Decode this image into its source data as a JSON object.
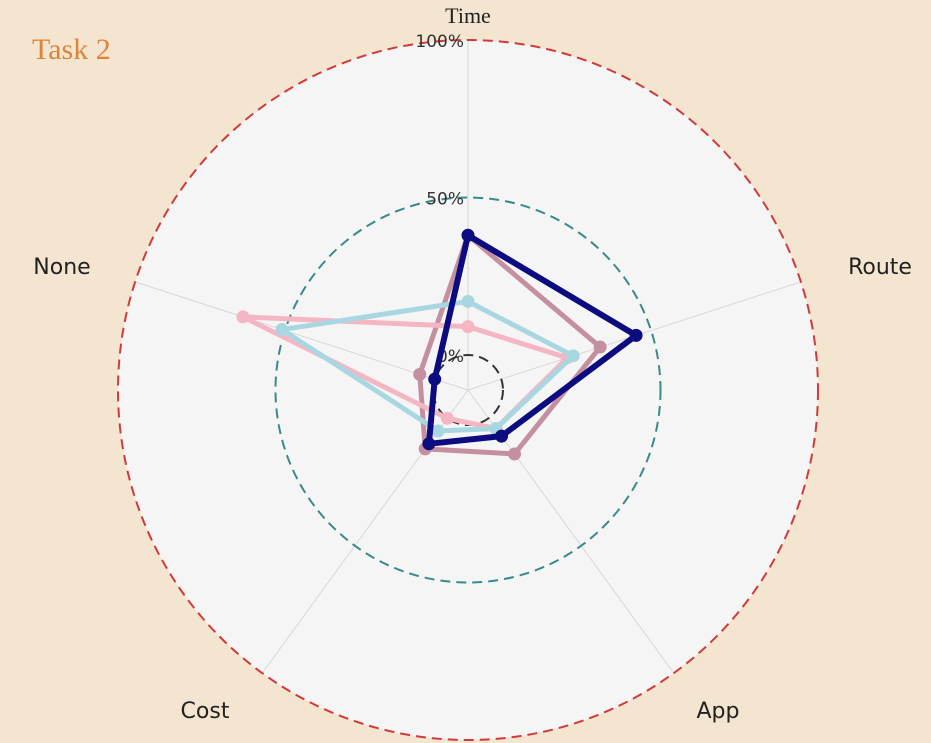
{
  "header": {
    "title": "Task 2"
  },
  "chart_data": {
    "type": "radar",
    "categories": [
      "Time",
      "Route",
      "App",
      "Cost",
      "None"
    ],
    "series": [
      {
        "color": "#c4909f",
        "values": [
          38,
          33,
          14,
          12,
          5
        ]
      },
      {
        "color": "#f5b6c3",
        "values": [
          9,
          22,
          4,
          0,
          64
        ]
      },
      {
        "color": "#a9d7e1",
        "values": [
          17,
          24,
          4,
          5,
          51
        ]
      },
      {
        "color": "#0c0c80",
        "values": [
          38,
          45,
          7,
          10,
          0
        ]
      }
    ],
    "rlim": [
      0,
      100
    ],
    "rticks": [
      {
        "value": 0,
        "label": "0%"
      },
      {
        "value": 50,
        "label": "50%"
      },
      {
        "value": 100,
        "label": "100%"
      }
    ],
    "grid_colors": [
      "#333333",
      "#3a8a8a",
      "#d03a3a"
    ]
  }
}
